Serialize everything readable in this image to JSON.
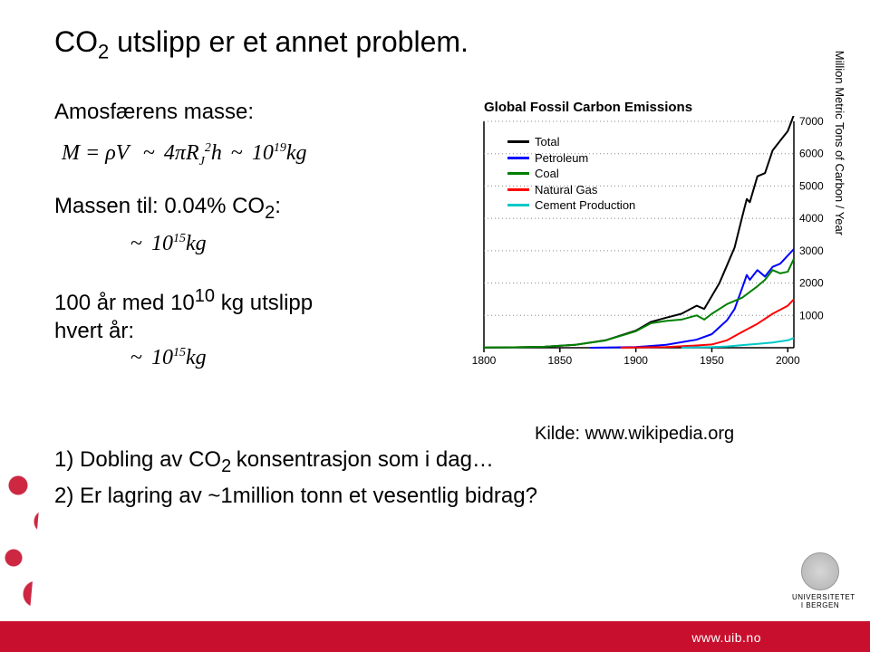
{
  "title_html": "CO<sub>2</sub> utslipp er et annet problem.",
  "atmos_label": "Amosfærens masse:",
  "atmos_formula_html": "M = ρV &nbsp;<span class='sim'>~</span> 4πR<sub>J</sub><sup>2</sup>h <span class='sim'>~</span> 10<sup>19</sup>kg",
  "mass_label_html": "Massen til: 0.04% CO<sub>2</sub>:",
  "mass_formula_html": "<span class='sim'>~</span> 10<sup>15</sup>kg",
  "emiss_label_html": "100 år med 10<sup>10</sup> kg utslipp<br>hvert år:",
  "emiss_formula_html": "<span class='sim'>~</span> 10<sup>15</sup>kg",
  "kilde": "Kilde: www.wikipedia.org",
  "bullet1_html": "1) Dobling av CO<sub>2 </sub>konsentrasjon som i dag…",
  "bullet2": "2) Er lagring av ~1million tonn et vesentlig bidrag?",
  "footer_url": "www.uib.no",
  "uni_name": "UNIVERSITETET I BERGEN",
  "chart": {
    "type": "line",
    "title": "Global Fossil Carbon Emissions",
    "ylabel": "Million Metric Tons of Carbon / Year",
    "xlim": [
      1800,
      2004
    ],
    "ylim": [
      0,
      7000
    ],
    "xticks": [
      1800,
      1850,
      1900,
      1950,
      2000
    ],
    "yticks": [
      1000,
      2000,
      3000,
      4000,
      5000,
      6000,
      7000
    ],
    "background_color": "#ffffff",
    "axis_color": "#000000",
    "grid_color": "#888888",
    "tick_fontsize": 12,
    "line_width": 2,
    "grid_dash": "1 3",
    "legend": [
      {
        "label": "Total",
        "color": "#000000"
      },
      {
        "label": "Petroleum",
        "color": "#0000ff"
      },
      {
        "label": "Coal",
        "color": "#008000"
      },
      {
        "label": "Natural Gas",
        "color": "#ff0000"
      },
      {
        "label": "Cement Production",
        "color": "#00c8c8"
      }
    ],
    "series": {
      "total": {
        "color": "#000000",
        "points": [
          [
            1800,
            8
          ],
          [
            1820,
            14
          ],
          [
            1840,
            33
          ],
          [
            1860,
            90
          ],
          [
            1880,
            230
          ],
          [
            1900,
            530
          ],
          [
            1910,
            800
          ],
          [
            1920,
            930
          ],
          [
            1930,
            1050
          ],
          [
            1940,
            1300
          ],
          [
            1945,
            1200
          ],
          [
            1950,
            1600
          ],
          [
            1955,
            2000
          ],
          [
            1960,
            2550
          ],
          [
            1965,
            3100
          ],
          [
            1970,
            4050
          ],
          [
            1973,
            4600
          ],
          [
            1975,
            4500
          ],
          [
            1980,
            5300
          ],
          [
            1985,
            5400
          ],
          [
            1990,
            6100
          ],
          [
            1995,
            6400
          ],
          [
            2000,
            6700
          ],
          [
            2004,
            7200
          ]
        ]
      },
      "petroleum": {
        "color": "#0000ff",
        "points": [
          [
            1870,
            1
          ],
          [
            1900,
            20
          ],
          [
            1920,
            90
          ],
          [
            1940,
            250
          ],
          [
            1950,
            420
          ],
          [
            1960,
            850
          ],
          [
            1965,
            1200
          ],
          [
            1970,
            1850
          ],
          [
            1973,
            2250
          ],
          [
            1975,
            2100
          ],
          [
            1980,
            2400
          ],
          [
            1985,
            2200
          ],
          [
            1990,
            2500
          ],
          [
            1995,
            2600
          ],
          [
            2000,
            2850
          ],
          [
            2004,
            3050
          ]
        ]
      },
      "coal": {
        "color": "#008000",
        "points": [
          [
            1800,
            8
          ],
          [
            1820,
            14
          ],
          [
            1840,
            33
          ],
          [
            1860,
            90
          ],
          [
            1880,
            225
          ],
          [
            1900,
            510
          ],
          [
            1910,
            760
          ],
          [
            1920,
            830
          ],
          [
            1930,
            870
          ],
          [
            1940,
            1000
          ],
          [
            1945,
            870
          ],
          [
            1950,
            1050
          ],
          [
            1960,
            1350
          ],
          [
            1970,
            1550
          ],
          [
            1980,
            1900
          ],
          [
            1985,
            2100
          ],
          [
            1990,
            2400
          ],
          [
            1995,
            2300
          ],
          [
            2000,
            2350
          ],
          [
            2004,
            2750
          ]
        ]
      },
      "natural_gas": {
        "color": "#ff0000",
        "points": [
          [
            1890,
            2
          ],
          [
            1920,
            20
          ],
          [
            1940,
            70
          ],
          [
            1950,
            100
          ],
          [
            1960,
            230
          ],
          [
            1970,
            490
          ],
          [
            1980,
            740
          ],
          [
            1990,
            1050
          ],
          [
            2000,
            1300
          ],
          [
            2004,
            1500
          ]
        ]
      },
      "cement": {
        "color": "#00c8c8",
        "points": [
          [
            1930,
            5
          ],
          [
            1950,
            20
          ],
          [
            1960,
            40
          ],
          [
            1970,
            80
          ],
          [
            1980,
            120
          ],
          [
            1990,
            160
          ],
          [
            2000,
            230
          ],
          [
            2004,
            300
          ]
        ]
      }
    }
  }
}
